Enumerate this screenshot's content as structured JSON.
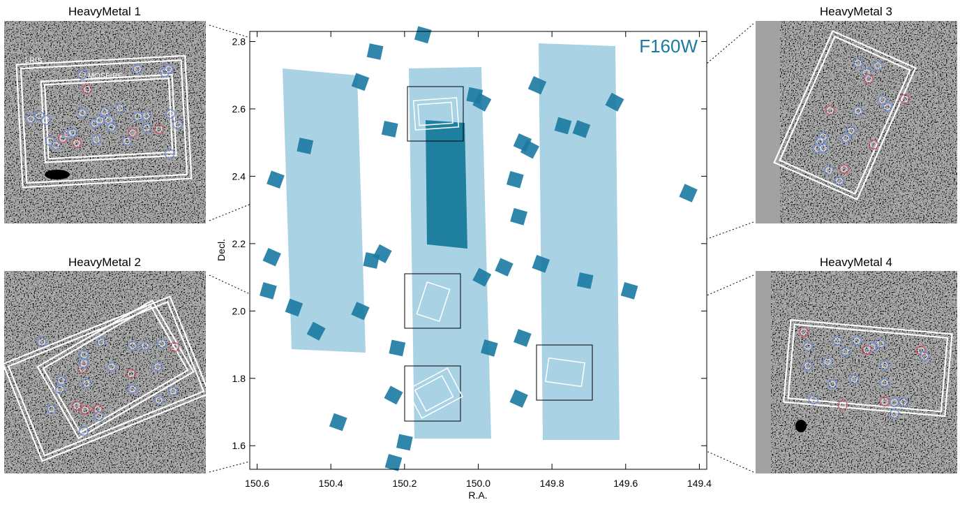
{
  "chart_data": {
    "type": "scatter",
    "annotation": "F160W",
    "x_label": "R.A.",
    "y_label": "Decl.",
    "xlim": [
      150.62,
      149.38
    ],
    "ylim": [
      1.53,
      2.83
    ],
    "xticks": [
      150.6,
      150.4,
      150.2,
      {
        "value": 150,
        "label": "150.0"
      },
      149.8,
      149.6,
      149.4
    ],
    "yticks": [
      1.6,
      1.8,
      {
        "value": 2,
        "label": "2.0"
      },
      2.2,
      2.4,
      2.6,
      2.8
    ],
    "color": "#1b7aa2",
    "x": [
      150.28,
      150.15,
      150.32,
      149.84,
      149.63,
      150.24,
      149.77,
      149.72,
      149.88,
      149.86,
      150.47,
      149.9,
      150.55,
      150.56,
      150.26,
      150.29,
      149.89,
      149.83,
      149.93,
      149.99,
      149.71,
      149.59,
      150.5,
      150.32,
      150.44,
      150.22,
      149.97,
      149.88,
      149.89,
      150.23,
      150.2,
      150.23,
      150.38,
      149.43,
      149.99,
      150.01,
      150.57
    ],
    "values": [
      2.77,
      2.82,
      2.68,
      2.67,
      2.62,
      2.54,
      2.55,
      2.54,
      2.5,
      2.48,
      2.49,
      2.39,
      2.39,
      2.16,
      2.17,
      2.15,
      2.28,
      2.14,
      2.13,
      2.1,
      2.09,
      2.06,
      2.01,
      2.0,
      1.94,
      1.89,
      1.89,
      1.92,
      1.74,
      1.75,
      1.61,
      1.55,
      1.67,
      2.35,
      2.62,
      2.64,
      2.06
    ]
  },
  "insets": [
    {
      "title": "HeavyMetal 1",
      "instrument_labels": [
        "LRIS",
        "MOSFIRE"
      ]
    },
    {
      "title": "HeavyMetal 2"
    },
    {
      "title": "HeavyMetal 3"
    },
    {
      "title": "HeavyMetal 4"
    }
  ]
}
